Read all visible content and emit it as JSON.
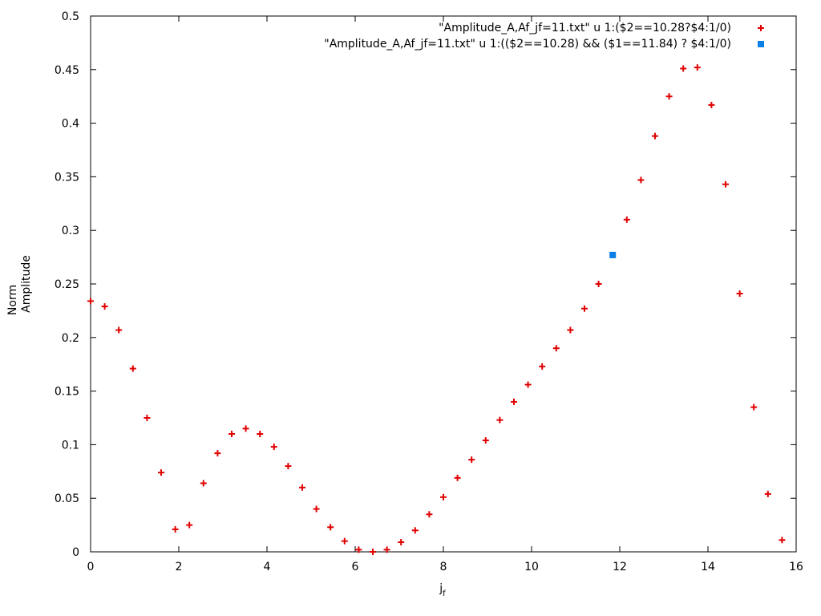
{
  "chart_data": {
    "type": "scatter",
    "xlabel": "j",
    "xlabel_sub": "f",
    "ylabel_lines": [
      "Norm",
      "Amplitude"
    ],
    "xlim": [
      0,
      16
    ],
    "ylim": [
      0,
      0.5
    ],
    "x_ticks": [
      0,
      2,
      4,
      6,
      8,
      10,
      12,
      14,
      16
    ],
    "x_tick_labels": [
      "0",
      "2",
      "4",
      "6",
      "8",
      "10",
      "12",
      "14",
      "16"
    ],
    "y_ticks": [
      0,
      0.05,
      0.1,
      0.15,
      0.2,
      0.25,
      0.3,
      0.35,
      0.4,
      0.45,
      0.5
    ],
    "y_tick_labels": [
      "0",
      "0.05",
      "0.1",
      "0.15",
      "0.2",
      "0.25",
      "0.3",
      "0.35",
      "0.4",
      "0.45",
      "0.5"
    ],
    "grid": false,
    "legend_position": "top-right",
    "series": [
      {
        "name": "\"Amplitude_A,Af_jf=11.txt\" u 1:($2==10.28?$4:1/0)",
        "marker": "plus",
        "color": "#e00000",
        "x": [
          0.0,
          0.32,
          0.64,
          0.96,
          1.28,
          1.6,
          1.92,
          2.24,
          2.56,
          2.88,
          3.2,
          3.52,
          3.84,
          4.16,
          4.48,
          4.8,
          5.12,
          5.44,
          5.76,
          6.08,
          6.4,
          6.72,
          7.04,
          7.36,
          7.68,
          8.0,
          8.32,
          8.64,
          8.96,
          9.28,
          9.6,
          9.92,
          10.24,
          10.56,
          10.88,
          11.2,
          11.52,
          12.16,
          12.48,
          12.8,
          13.12,
          13.44,
          13.76,
          14.08,
          14.4,
          14.72,
          15.04,
          15.36,
          15.68
        ],
        "y": [
          0.234,
          0.229,
          0.207,
          0.171,
          0.125,
          0.074,
          0.021,
          0.025,
          0.064,
          0.092,
          0.11,
          0.115,
          0.11,
          0.098,
          0.08,
          0.06,
          0.04,
          0.023,
          0.01,
          0.002,
          0.0,
          0.002,
          0.009,
          0.02,
          0.035,
          0.051,
          0.069,
          0.086,
          0.104,
          0.123,
          0.14,
          0.156,
          0.173,
          0.19,
          0.207,
          0.227,
          0.25,
          0.31,
          0.347,
          0.388,
          0.425,
          0.451,
          0.452,
          0.417,
          0.343,
          0.241,
          0.135,
          0.054,
          0.011
        ]
      },
      {
        "name": "\"Amplitude_A,Af_jf=11.txt\" u 1:(($2==10.28) && ($1==11.84) ? $4:1/0)",
        "marker": "square",
        "color": "#0a7fe6",
        "x": [
          11.84
        ],
        "y": [
          0.277
        ]
      }
    ]
  }
}
